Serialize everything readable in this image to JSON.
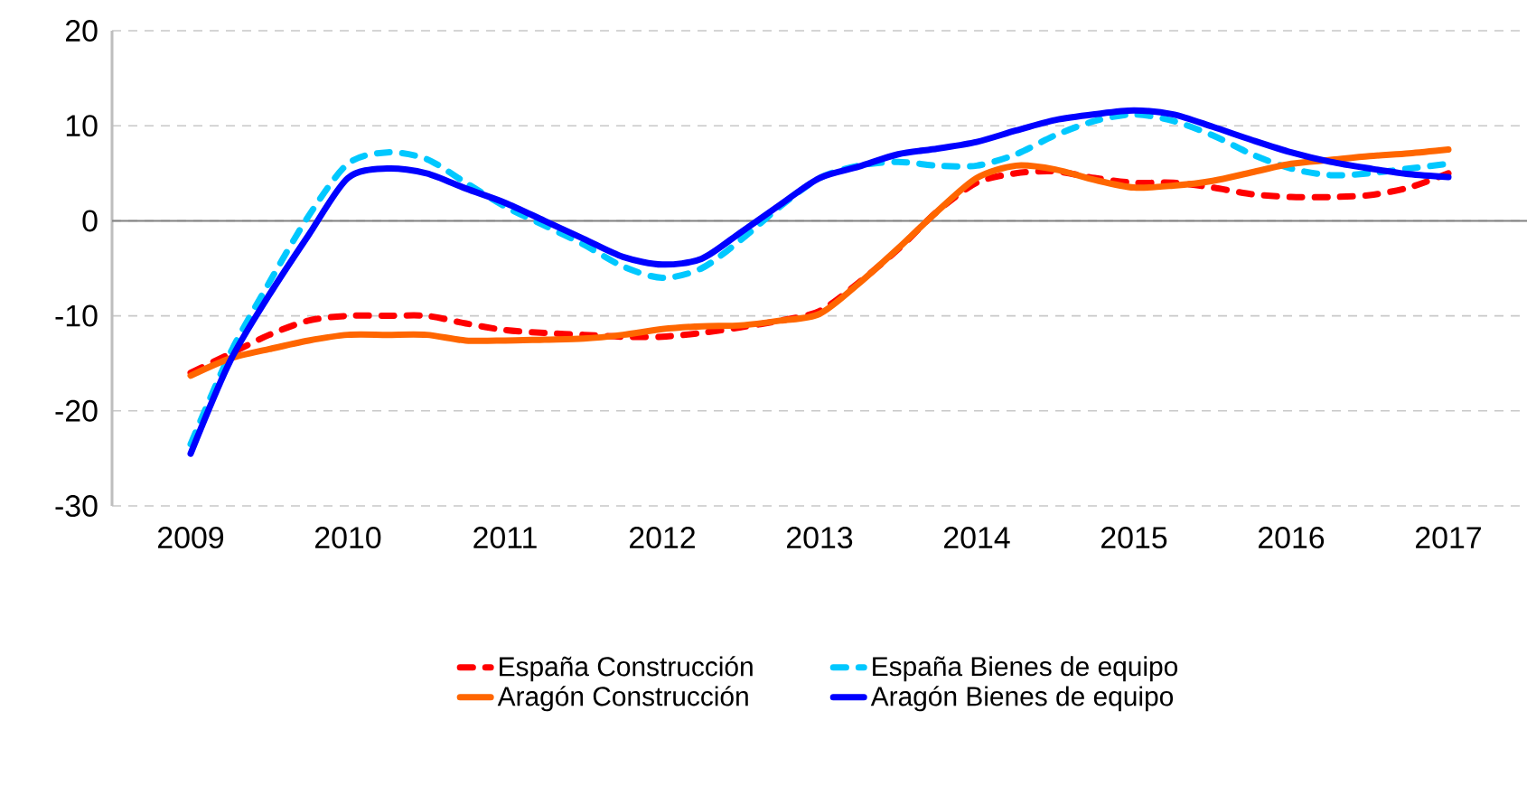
{
  "chart_data": {
    "type": "line",
    "x": [
      2009,
      2009.25,
      2009.5,
      2009.75,
      2010,
      2010.25,
      2010.5,
      2010.75,
      2011,
      2011.25,
      2011.5,
      2011.75,
      2012,
      2012.25,
      2012.5,
      2012.75,
      2013,
      2013.25,
      2013.5,
      2013.75,
      2014,
      2014.25,
      2014.5,
      2014.75,
      2015,
      2015.25,
      2015.5,
      2015.75,
      2016,
      2016.25,
      2016.5,
      2016.75,
      2017
    ],
    "series": [
      {
        "name": "España Construcción",
        "color": "#ff0000",
        "line_style": "dashed",
        "values": [
          -16,
          -14,
          -12,
          -10.5,
          -10,
          -10,
          -10,
          -10.8,
          -11.5,
          -11.8,
          -12,
          -12.2,
          -12.2,
          -11.8,
          -11.2,
          -10.5,
          -9.5,
          -6.5,
          -3,
          1,
          4,
          5,
          5.2,
          4.5,
          4,
          4,
          3.5,
          2.8,
          2.5,
          2.5,
          2.7,
          3.5,
          5
        ]
      },
      {
        "name": "España Bienes de equipo",
        "color": "#00c8ff",
        "line_style": "dashed",
        "values": [
          -23.5,
          -14,
          -6.5,
          0.5,
          6,
          7.2,
          6.5,
          4,
          1.5,
          -0.5,
          -2.5,
          -4.8,
          -6,
          -5,
          -2,
          1.5,
          4.5,
          5.8,
          6.2,
          5.8,
          5.8,
          7,
          9,
          10.5,
          11.2,
          10.5,
          9,
          7,
          5.5,
          4.8,
          5,
          5.5,
          6
        ]
      },
      {
        "name": "Aragón Construcción",
        "color": "#ff6600",
        "line_style": "solid",
        "values": [
          -16.3,
          -14.5,
          -13.5,
          -12.6,
          -12,
          -12,
          -12,
          -12.6,
          -12.6,
          -12.5,
          -12.4,
          -12,
          -11.4,
          -11.1,
          -11,
          -10.5,
          -9.8,
          -6.6,
          -2.9,
          1,
          4.5,
          5.8,
          5.4,
          4.3,
          3.5,
          3.7,
          4.2,
          5.1,
          6,
          6.4,
          6.8,
          7.1,
          7.5
        ]
      },
      {
        "name": "Aragón Bienes de equipo",
        "color": "#0000ff",
        "line_style": "solid",
        "values": [
          -24.5,
          -14.8,
          -7.8,
          -1.5,
          4.5,
          5.5,
          5,
          3.4,
          1.9,
          0,
          -1.9,
          -3.8,
          -4.6,
          -4,
          -1.2,
          1.7,
          4.5,
          5.7,
          7,
          7.6,
          8.3,
          9.5,
          10.6,
          11.2,
          11.6,
          11.2,
          9.9,
          8.5,
          7.2,
          6.2,
          5.5,
          4.9,
          4.6
        ]
      }
    ],
    "xlim": [
      2008.5,
      2017.5
    ],
    "xticks": [
      2009,
      2010,
      2011,
      2012,
      2013,
      2014,
      2015,
      2016,
      2017
    ],
    "ylim": [
      -30,
      20
    ],
    "yticks": [
      -30,
      -20,
      -10,
      0,
      10,
      20
    ],
    "grid": "y",
    "legend": "bottom",
    "marker": "none",
    "ref_lines": [
      {
        "axis": "y",
        "value": 0,
        "color": "#808080"
      }
    ]
  }
}
